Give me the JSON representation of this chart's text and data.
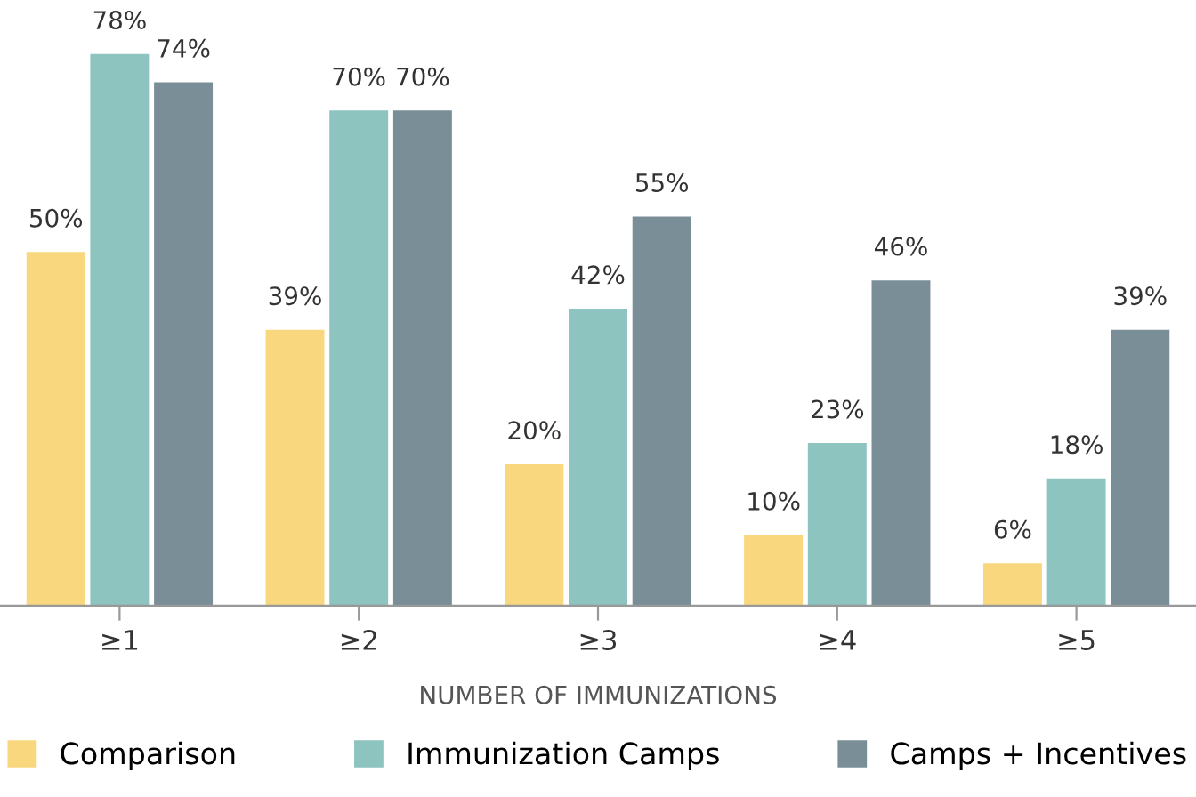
{
  "chart_data": {
    "type": "bar",
    "xlabel": "NUMBER OF IMMUNIZATIONS",
    "categories": [
      "≥1",
      "≥2",
      "≥3",
      "≥4",
      "≥5"
    ],
    "series": [
      {
        "name": "Comparison",
        "color": "#f9d77e",
        "values": [
          50,
          39,
          20,
          10,
          6
        ],
        "value_labels": [
          "50%",
          "39%",
          "20%",
          "10%",
          "6%"
        ]
      },
      {
        "name": "Immunization Camps",
        "color": "#8dc4c0",
        "values": [
          78,
          70,
          42,
          23,
          18
        ],
        "value_labels": [
          "78%",
          "70%",
          "42%",
          "23%",
          "18%"
        ]
      },
      {
        "name": "Camps + Incentives",
        "color": "#7a8e98",
        "values": [
          74,
          70,
          55,
          46,
          39
        ],
        "value_labels": [
          "74%",
          "70%",
          "55%",
          "46%",
          "39%"
        ]
      }
    ],
    "legend": "bottom",
    "grid": false
  }
}
